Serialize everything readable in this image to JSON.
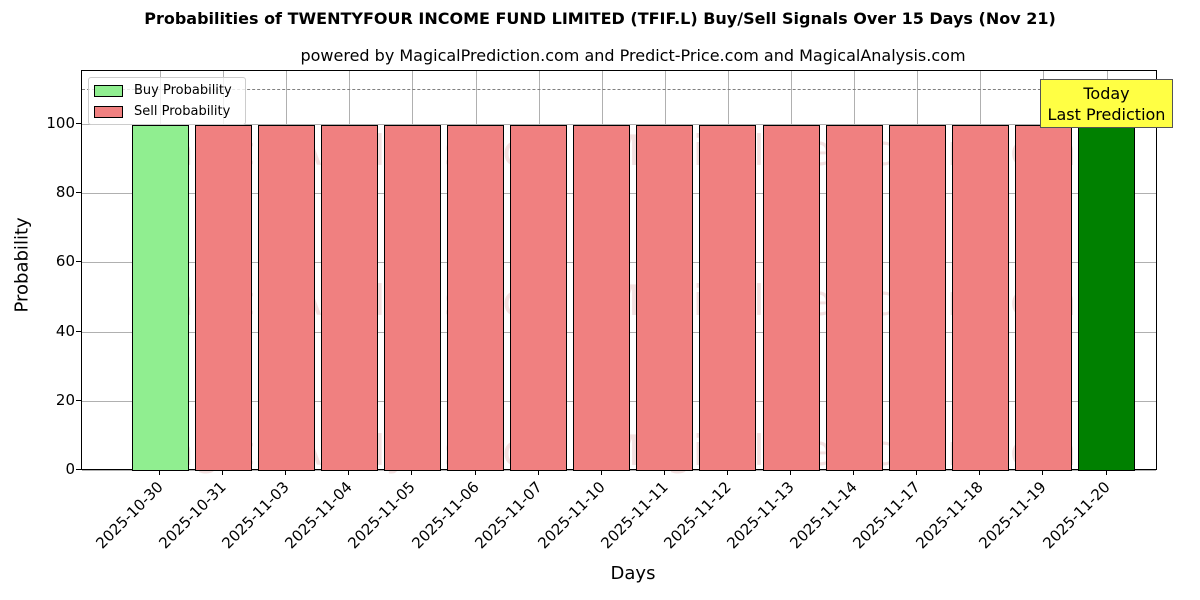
{
  "chart_data": {
    "type": "bar",
    "title": "Probabilities of TWENTYFOUR INCOME FUND LIMITED  (TFIF.L) Buy/Sell Signals Over 15 Days (Nov 21)",
    "subtitle": "powered by MagicalPrediction.com and Predict-Price.com and MagicalAnalysis.com",
    "xlabel": "Days",
    "ylabel": "Probability",
    "ylim": [
      0,
      115
    ],
    "yticks": [
      0,
      20,
      40,
      60,
      80,
      100
    ],
    "grid": true,
    "legend_position": "upper left",
    "categories": [
      "2025-10-30",
      "2025-10-31",
      "2025-11-03",
      "2025-11-04",
      "2025-11-05",
      "2025-11-06",
      "2025-11-07",
      "2025-11-10",
      "2025-11-11",
      "2025-11-12",
      "2025-11-13",
      "2025-11-14",
      "2025-11-17",
      "2025-11-18",
      "2025-11-19",
      "2025-11-20"
    ],
    "series": [
      {
        "name": "Buy Probability",
        "color": "#90ee90",
        "values": [
          100,
          0,
          0,
          0,
          0,
          0,
          0,
          0,
          0,
          0,
          0,
          0,
          0,
          0,
          0,
          100
        ]
      },
      {
        "name": "Sell Probability",
        "color": "#f08080",
        "values": [
          0,
          100,
          100,
          100,
          100,
          100,
          100,
          100,
          100,
          100,
          100,
          100,
          100,
          100,
          100,
          0
        ]
      }
    ],
    "highlight": {
      "index": 15,
      "color": "#008000"
    },
    "reference_line": {
      "y": 110,
      "style": "dashed",
      "color": "#808080"
    },
    "annotation": {
      "line1": "Today",
      "line2": "Last Prediction",
      "background": "#ffff44"
    },
    "watermarks": [
      "MagicalAnalysis.com",
      "MagicalPrediction.com"
    ]
  }
}
